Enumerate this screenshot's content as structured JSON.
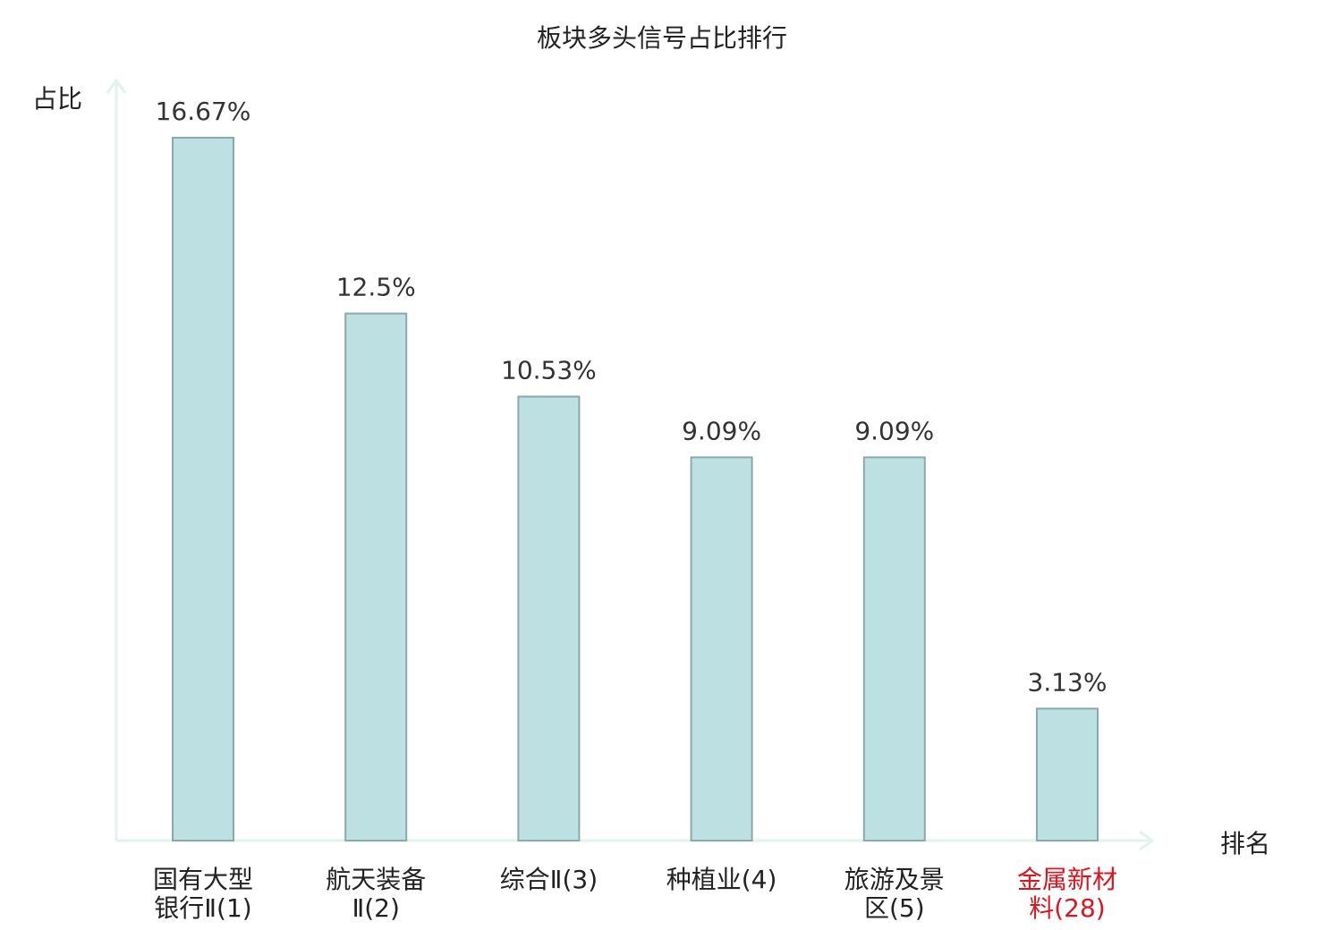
{
  "chart_data": {
    "type": "bar",
    "title": "板块多头信号占比排行",
    "ylabel": "占比",
    "xlabel": "排名",
    "ylim": [
      0,
      16.67
    ],
    "grid": false,
    "categories": [
      {
        "lines": [
          "国有大型",
          "银行Ⅱ(1)"
        ],
        "highlight": false
      },
      {
        "lines": [
          "航天装备",
          "Ⅱ(2)"
        ],
        "highlight": false
      },
      {
        "lines": [
          "综合Ⅱ(3)"
        ],
        "highlight": false
      },
      {
        "lines": [
          "种植业(4)"
        ],
        "highlight": false
      },
      {
        "lines": [
          "旅游及景",
          "区(5)"
        ],
        "highlight": false
      },
      {
        "lines": [
          "金属新材",
          "料(28)"
        ],
        "highlight": true
      }
    ],
    "values": [
      16.67,
      12.5,
      10.53,
      9.09,
      9.09,
      3.13
    ],
    "value_labels": [
      "16.67%",
      "12.5%",
      "10.53%",
      "9.09%",
      "9.09%",
      "3.13%"
    ]
  },
  "colors": {
    "bar_fill": "#bde0e3",
    "bar_stroke": "#8aaaaa",
    "axis": "#e2f2ef",
    "text": "#222222",
    "value_text": "#333333",
    "highlight_text": "#e0141e"
  }
}
